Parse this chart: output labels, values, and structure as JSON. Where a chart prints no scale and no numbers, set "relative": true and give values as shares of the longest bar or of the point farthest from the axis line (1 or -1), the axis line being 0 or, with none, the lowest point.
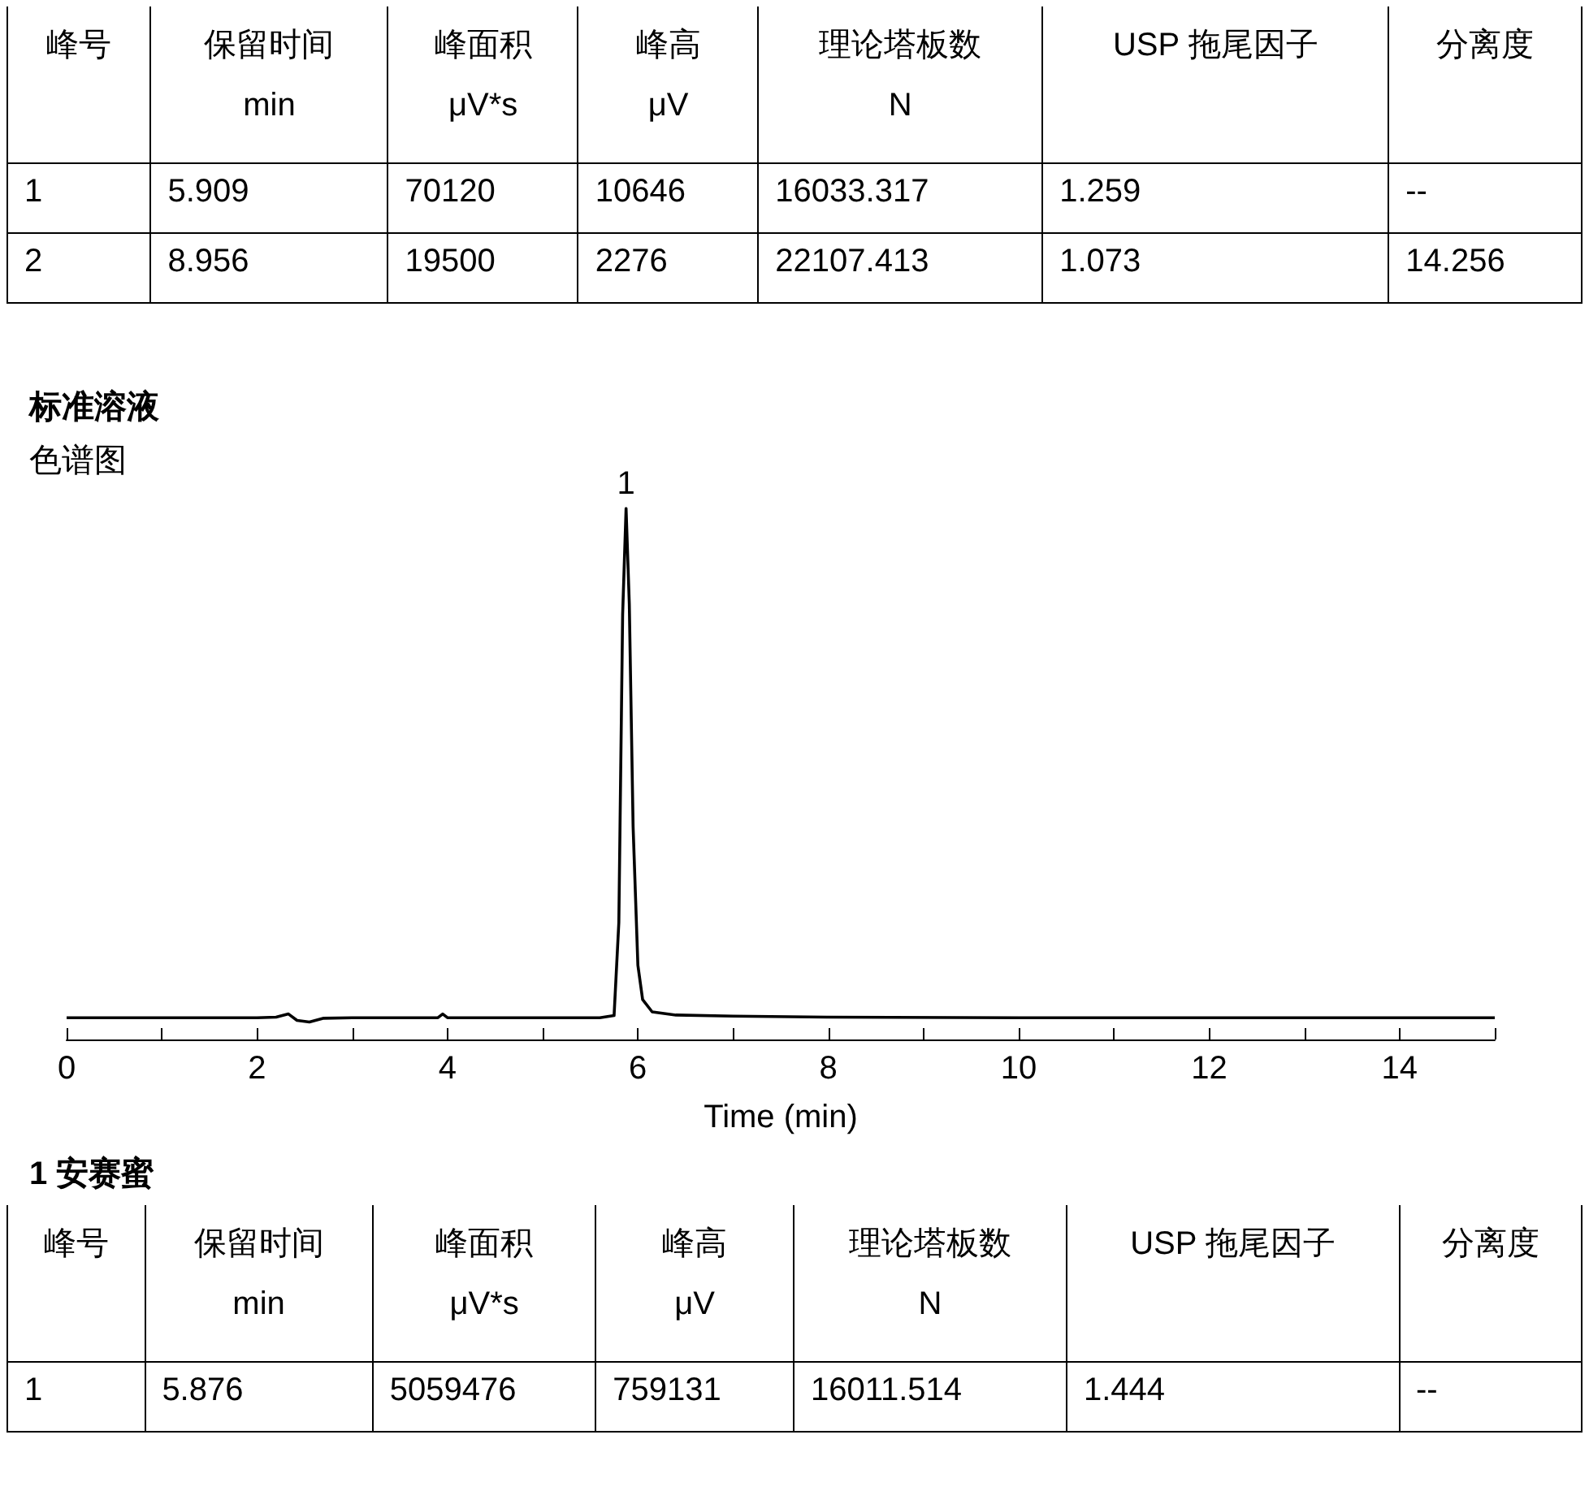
{
  "chart_data": [
    {
      "type": "other",
      "annotations": [
        "峰号",
        "保留时间\nmin",
        "峰面积\nμV*s",
        "峰高\nμV",
        "理论塔板数\nN",
        "USP 拖尾因子",
        "分离度",
        "1",
        "5.909",
        "70120",
        "10646",
        "16033.317",
        "1.259",
        "--",
        "2",
        "8.956",
        "19500",
        "2276",
        "22107.413",
        "1.073",
        "14.256"
      ]
    },
    {
      "type": "line",
      "title": "标准溶液",
      "subtitle": "色谱图",
      "xlabel": "Time (min)",
      "relative": true,
      "color": "#000000",
      "marker": "none",
      "line_style": "solid",
      "grid": false,
      "tick_labels": "x",
      "x": [
        0,
        1,
        2,
        2.2,
        2.33,
        2.42,
        2.55,
        2.7,
        3,
        3.9,
        3.95,
        4.0,
        5,
        5.6,
        5.75,
        5.8,
        5.84,
        5.876,
        5.91,
        5.95,
        6.0,
        6.05,
        6.15,
        6.4,
        7,
        8,
        10,
        12,
        15
      ],
      "values": [
        0.041,
        0.041,
        0.041,
        0.042,
        0.048,
        0.036,
        0.033,
        0.04,
        0.041,
        0.041,
        0.048,
        0.041,
        0.041,
        0.041,
        0.045,
        0.22,
        0.8,
        1,
        0.82,
        0.4,
        0.14,
        0.075,
        0.052,
        0.046,
        0.044,
        0.042,
        0.041,
        0.041,
        0.041
      ],
      "xlim": [
        0,
        15
      ],
      "xticks": [
        0,
        {
          "value": 1,
          "label": null
        },
        2,
        {
          "value": 3,
          "label": null
        },
        4,
        {
          "value": 5,
          "label": null
        },
        6,
        {
          "value": 7,
          "label": null
        },
        8,
        {
          "value": 9,
          "label": null
        },
        10,
        {
          "value": 11,
          "label": null
        },
        12,
        {
          "value": 13,
          "label": null
        },
        14,
        {
          "value": 15,
          "label": null
        }
      ],
      "annotations": [
        {
          "text": "1",
          "x": 5.876,
          "y": 1
        }
      ]
    },
    {
      "type": "other",
      "title": "1  安赛蜜",
      "annotations": [
        "峰号",
        "保留时间\nmin",
        "峰面积\nμV*s",
        "峰高\nμV",
        "理论塔板数\nN",
        "USP 拖尾因子",
        "分离度",
        "1",
        "5.876",
        "5059476",
        "759131",
        "16011.514",
        "1.444",
        "--"
      ]
    }
  ]
}
